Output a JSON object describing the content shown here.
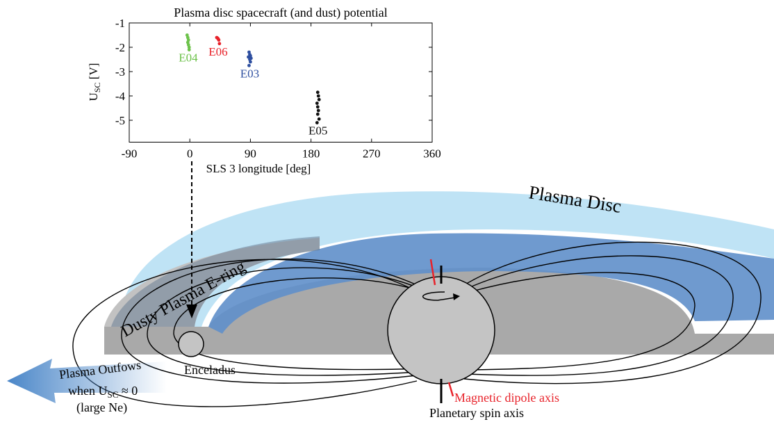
{
  "chart_data": {
    "type": "scatter",
    "title": "Plasma disc spacecraft (and dust) potential",
    "xlabel": "SLS 3 longitude [deg]",
    "ylabel": {
      "main": "U",
      "sub": "SC",
      "unit": " [V]"
    },
    "xlim": [
      -90,
      360
    ],
    "xticks": [
      -90,
      0,
      90,
      180,
      270,
      360
    ],
    "ylim": [
      -5.9,
      -1
    ],
    "yticks": [
      -1,
      -2,
      -3,
      -4,
      -5
    ],
    "series": [
      {
        "name": "E04",
        "color": "#6cc24a",
        "x": [
          -4,
          -3,
          -2,
          -3,
          -2,
          -1,
          -1
        ],
        "values": [
          -1.5,
          -1.6,
          -1.7,
          -1.8,
          -1.9,
          -2.0,
          -2.1
        ]
      },
      {
        "name": "E06",
        "color": "#e8222a",
        "x": [
          40,
          42,
          43,
          41,
          44
        ],
        "values": [
          -1.6,
          -1.65,
          -1.7,
          -1.62,
          -1.85
        ]
      },
      {
        "name": "E03",
        "color": "#2e4fa0",
        "x": [
          88,
          89,
          90,
          87,
          91,
          89,
          90,
          88
        ],
        "values": [
          -2.2,
          -2.3,
          -2.35,
          -2.4,
          -2.45,
          -2.5,
          -2.6,
          -2.75
        ]
      },
      {
        "name": "E05",
        "color": "#111111",
        "x": [
          190,
          191,
          192,
          189,
          190,
          191,
          190,
          192,
          189
        ],
        "values": [
          -3.85,
          -4.0,
          -4.15,
          -4.3,
          -4.45,
          -4.6,
          -4.75,
          -4.95,
          -5.1
        ]
      }
    ]
  },
  "diagram": {
    "plasma_disc": "Plasma Disc",
    "e_ring": "Dusty Plasma E-ring",
    "moon": "Enceladus",
    "outflow": {
      "line1": "Plasma Outfows",
      "line2_pre": "when U",
      "line2_sub": "SC",
      "line2_post": " ≈ 0",
      "line3": "(large Ne)"
    },
    "dipole_axis": "Magnetic dipole axis",
    "spin_axis": "Planetary spin axis"
  }
}
